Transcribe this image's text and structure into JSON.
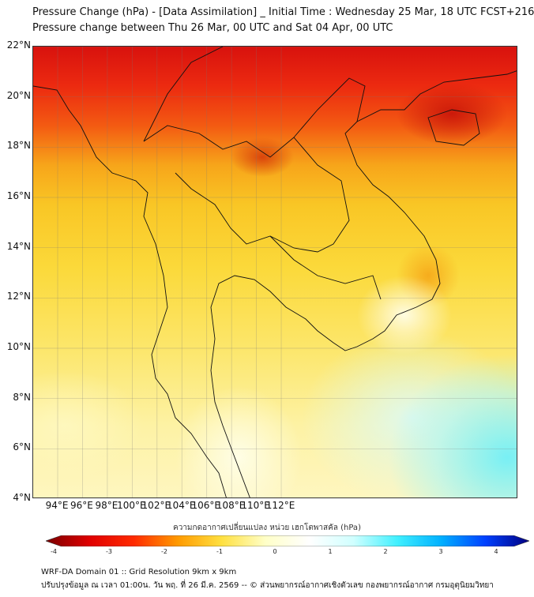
{
  "header": {
    "title_line1": "Pressure Change (hPa) - [Data Assimilation] _ Initial Time : Wednesday 25 Mar, 18 UTC FCST+216",
    "title_line2": "Pressure change between Thu 26 Mar, 00 UTC and Sat 04 Apr, 00 UTC"
  },
  "map": {
    "lat_labels": [
      "22°N",
      "20°N",
      "18°N",
      "16°N",
      "14°N",
      "12°N",
      "10°N",
      "8°N",
      "6°N",
      "4°N"
    ],
    "lon_labels": [
      "94°E",
      "96°E",
      "98°E",
      "100°E",
      "102°E",
      "104°E",
      "106°E",
      "108°E",
      "110°E",
      "112°E"
    ]
  },
  "colorbar": {
    "label": "ความกดอากาศเปลี่ยนแปลง หน่วย เฮกโตพาสคัล (hPa)",
    "ticks": [
      "-4",
      "-3",
      "-2",
      "-1",
      "0",
      "1",
      "2",
      "3",
      "4"
    ],
    "colors": [
      "#7a0000",
      "#e00000",
      "#ff2a00",
      "#ff9a00",
      "#ffe040",
      "#ffffc8",
      "#ffffff",
      "#d0ffff",
      "#40f0ff",
      "#00b0ff",
      "#0040ff",
      "#000080"
    ]
  },
  "footer": {
    "line1": "WRF-DA Domain 01 :: Grid Resolution 9km x 9km",
    "line2": "ปรับปรุงข้อมูล ณ เวลา 01:00น. วัน พฤ. ที่ 26 มี.ค. 2569 -- © ส่วนพยากรณ์อากาศเชิงตัวเลข กองพยากรณ์อากาศ กรมอุตุนิยมวิทยา"
  }
}
